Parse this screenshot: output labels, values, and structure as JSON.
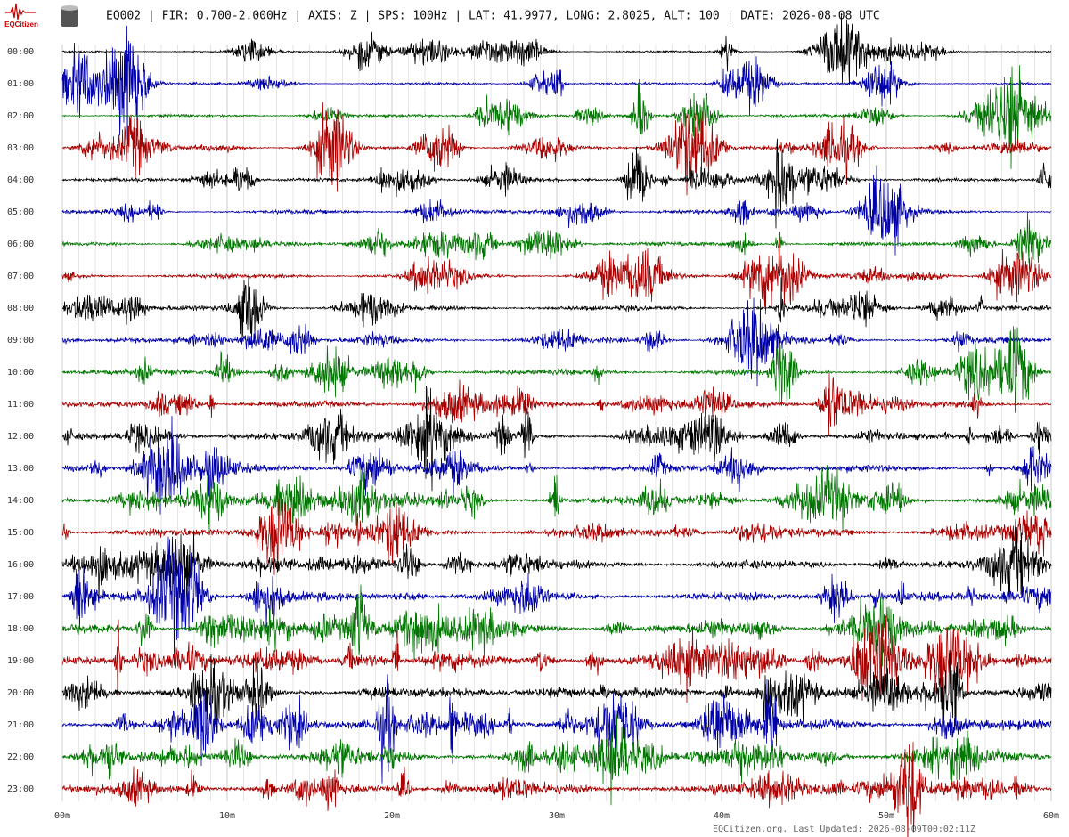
{
  "header": {
    "logo": "EQCitizen",
    "title": "EQ002 | FIR: 0.700-2.000Hz | AXIS: Z | SPS: 100Hz | LAT: 41.9977, LONG: 2.8025, ALT: 100 | DATE: 2026-08-08 UTC"
  },
  "rows": [
    "00:00",
    "01:00",
    "02:00",
    "03:00",
    "04:00",
    "05:00",
    "06:00",
    "07:00",
    "08:00",
    "09:00",
    "10:00",
    "11:00",
    "12:00",
    "13:00",
    "14:00",
    "15:00",
    "16:00",
    "17:00",
    "18:00",
    "19:00",
    "20:00",
    "21:00",
    "22:00",
    "23:00"
  ],
  "trace_colors": [
    "#000000",
    "#0000aa",
    "#007700",
    "#aa0000"
  ],
  "x_axis": {
    "ticks": [
      "00m",
      "10m",
      "20m",
      "30m",
      "40m",
      "50m",
      "60m"
    ]
  },
  "footer": "EQCitizen.org. Last Updated: 2026-08-09T00:02:11Z"
}
